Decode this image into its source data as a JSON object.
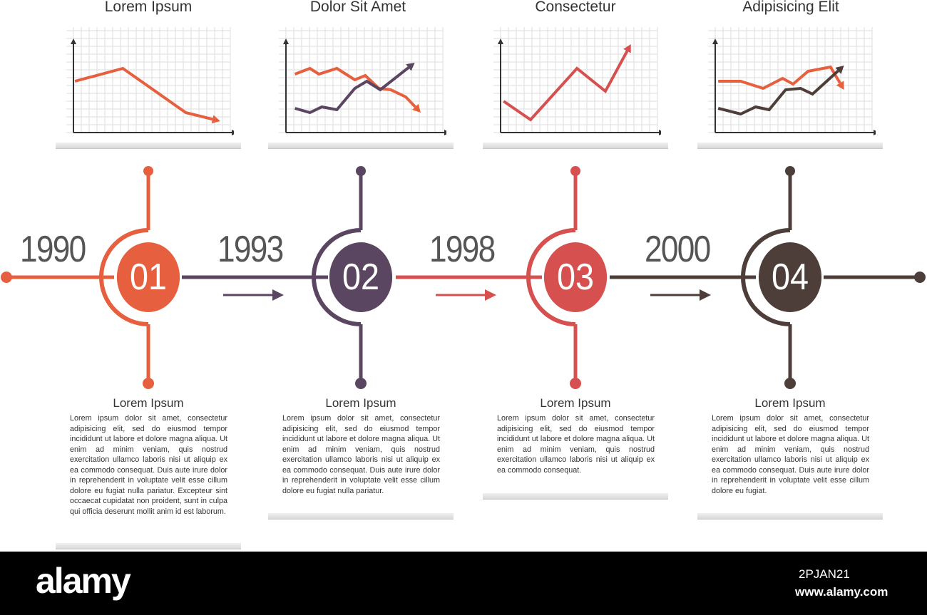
{
  "colors": {
    "orange": "#e65f3e",
    "purple": "#5a4660",
    "red": "#d5504e",
    "brown": "#4e3e3a"
  },
  "charts": [
    {
      "title": "Lorem Ipsum",
      "series": [
        {
          "color": "#e65f3e",
          "points": [
            [
              0.1,
              3.6
            ],
            [
              3.3,
              4.5
            ],
            [
              7.5,
              1.4
            ],
            [
              9.8,
              0.8
            ]
          ]
        }
      ]
    },
    {
      "title": "Dolor Sit Amet",
      "series": [
        {
          "color": "#e65f3e",
          "points": [
            [
              0.6,
              4.1
            ],
            [
              1.6,
              4.5
            ],
            [
              2.2,
              4.1
            ],
            [
              3.4,
              4.5
            ],
            [
              4.6,
              3.7
            ],
            [
              5.3,
              4.0
            ],
            [
              6.2,
              3.1
            ],
            [
              7.0,
              3.0
            ],
            [
              8.0,
              2.5
            ],
            [
              9.0,
              1.4
            ]
          ]
        },
        {
          "color": "#5a4660",
          "points": [
            [
              0.6,
              1.7
            ],
            [
              1.6,
              1.4
            ],
            [
              2.4,
              1.8
            ],
            [
              3.4,
              1.6
            ],
            [
              4.6,
              3.1
            ],
            [
              5.4,
              3.6
            ],
            [
              6.3,
              3.0
            ],
            [
              8.6,
              4.9
            ]
          ]
        }
      ]
    },
    {
      "title": "Consectetur",
      "series": [
        {
          "color": "#d5504e",
          "points": [
            [
              0.2,
              2.2
            ],
            [
              2.0,
              0.9
            ],
            [
              5.1,
              4.5
            ],
            [
              7.0,
              2.9
            ],
            [
              8.7,
              6.2
            ]
          ]
        }
      ]
    },
    {
      "title": "Adipisicing Elit",
      "series": [
        {
          "color": "#e65f3e",
          "points": [
            [
              0.2,
              3.6
            ],
            [
              1.7,
              3.6
            ],
            [
              3.2,
              3.1
            ],
            [
              4.5,
              3.8
            ],
            [
              5.2,
              3.4
            ],
            [
              6.2,
              4.3
            ],
            [
              7.7,
              4.6
            ],
            [
              8.6,
              3.0
            ]
          ]
        },
        {
          "color": "#4e3e3a",
          "points": [
            [
              0.2,
              1.7
            ],
            [
              1.7,
              1.3
            ],
            [
              2.7,
              1.8
            ],
            [
              3.6,
              1.6
            ],
            [
              4.7,
              3.0
            ],
            [
              5.7,
              3.1
            ],
            [
              6.5,
              2.7
            ],
            [
              8.6,
              4.7
            ]
          ]
        }
      ]
    }
  ],
  "steps": [
    {
      "number": "01",
      "year": "1990",
      "title": "Lorem Ipsum",
      "body": "Lorem ipsum dolor sit amet, consectetur adipisicing elit, sed do eiusmod tempor incididunt ut labore et dolore magna aliqua. Ut enim ad minim veniam, quis nostrud exercitation ullamco laboris nisi ut aliquip ex ea commodo consequat. Duis aute irure dolor in reprehenderit in voluptate velit esse cillum dolore eu fugiat nulla pariatur. Excepteur sint occaecat cupidatat non proident, sunt in culpa qui officia deserunt mollit anim id est laborum."
    },
    {
      "number": "02",
      "year": "1993",
      "title": "Lorem Ipsum",
      "body": "Lorem ipsum dolor sit amet, consectetur adipisicing elit, sed do eiusmod tempor incididunt ut labore et dolore magna aliqua. Ut enim ad minim veniam, quis nostrud exercitation ullamco laboris nisi ut aliquip ex ea commodo consequat. Duis aute irure dolor in reprehenderit in voluptate velit esse cillum dolore eu fugiat nulla pariatur."
    },
    {
      "number": "03",
      "year": "1998",
      "title": "Lorem Ipsum",
      "body": "Lorem ipsum dolor sit amet, consectetur adipisicing elit, sed do eiusmod tempor incididunt ut labore et dolore magna aliqua. Ut enim ad minim veniam, quis nostrud exercitation ullamco laboris nisi ut aliquip ex ea commodo consequat."
    },
    {
      "number": "04",
      "year": "2000",
      "title": "Lorem Ipsum",
      "body": "Lorem ipsum dolor sit amet, consectetur adipisicing elit, sed do eiusmod tempor incididunt ut labore et dolore magna aliqua. Ut enim ad minim veniam, quis nostrud exercitation ullamco laboris nisi ut aliquip ex ea commodo consequat. Duis aute irure dolor in reprehenderit in voluptate velit esse cillum dolore eu fugiat."
    }
  ],
  "watermark": {
    "logo": "alamy",
    "image_id": "2PJAN21",
    "site": "www.alamy.com"
  }
}
